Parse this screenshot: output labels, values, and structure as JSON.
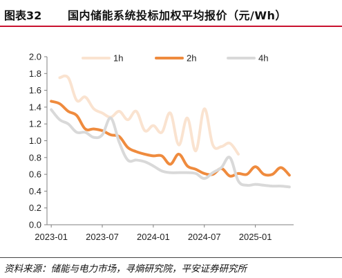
{
  "header": {
    "figure_number": "图表32",
    "title": "国内储能系统投标加权平均报价（元/Wh）"
  },
  "footer": {
    "source": "资料来源：储能与电力市场，寻熵研究院，平安证券研究所"
  },
  "colors": {
    "series_1h": "#fae3d0",
    "series_2h": "#ef8b3e",
    "series_4h": "#d9d9d9",
    "title_rule": "#c8102e"
  },
  "chart_data": {
    "type": "line",
    "title": "国内储能系统投标加权平均报价（元/Wh）",
    "xlabel": "",
    "ylabel": "",
    "ylim": [
      0,
      2.0
    ],
    "yticks": [
      "0.0",
      "0.2",
      "0.4",
      "0.6",
      "0.8",
      "1.0",
      "1.2",
      "1.4",
      "1.6",
      "1.8",
      "2.0"
    ],
    "xticks": [
      "2023-01",
      "2023-07",
      "2024-01",
      "2024-07",
      "2025-01"
    ],
    "xrange": [
      "2023-01",
      "2025-05"
    ],
    "legend_position": "top",
    "grid": false,
    "series": [
      {
        "name": "1h",
        "color": "#fae3d0",
        "points": [
          [
            "2023-02",
            1.75
          ],
          [
            "2023-03",
            1.75
          ],
          [
            "2023-04",
            1.48
          ],
          [
            "2023-05",
            1.52
          ],
          [
            "2023-06",
            1.38
          ],
          [
            "2023-07",
            1.33
          ],
          [
            "2023-08",
            1.28
          ],
          [
            "2023-09",
            1.35
          ],
          [
            "2023-10",
            1.25
          ],
          [
            "2023-11",
            1.35
          ],
          [
            "2023-12",
            1.12
          ],
          [
            "2024-01",
            1.18
          ],
          [
            "2024-02",
            1.1
          ],
          [
            "2024-03",
            1.33
          ],
          [
            "2024-04",
            0.95
          ],
          [
            "2024-05",
            1.27
          ],
          [
            "2024-06",
            0.88
          ],
          [
            "2024-07",
            1.38
          ],
          [
            "2024-08",
            0.95
          ],
          [
            "2024-09",
            0.93
          ],
          [
            "2024-10",
            0.97
          ],
          [
            "2024-11",
            0.84
          ]
        ]
      },
      {
        "name": "2h",
        "color": "#ef8b3e",
        "points": [
          [
            "2023-01",
            1.47
          ],
          [
            "2023-02",
            1.44
          ],
          [
            "2023-03",
            1.35
          ],
          [
            "2023-04",
            1.3
          ],
          [
            "2023-05",
            1.14
          ],
          [
            "2023-06",
            1.14
          ],
          [
            "2023-07",
            1.12
          ],
          [
            "2023-08",
            1.07
          ],
          [
            "2023-09",
            1.05
          ],
          [
            "2023-10",
            0.92
          ],
          [
            "2023-11",
            0.87
          ],
          [
            "2023-12",
            0.84
          ],
          [
            "2024-01",
            0.82
          ],
          [
            "2024-02",
            0.82
          ],
          [
            "2024-03",
            0.72
          ],
          [
            "2024-04",
            0.84
          ],
          [
            "2024-05",
            0.7
          ],
          [
            "2024-06",
            0.66
          ],
          [
            "2024-07",
            0.61
          ],
          [
            "2024-08",
            0.6
          ],
          [
            "2024-09",
            0.67
          ],
          [
            "2024-10",
            0.58
          ],
          [
            "2024-11",
            0.61
          ],
          [
            "2024-12",
            0.6
          ],
          [
            "2025-01",
            0.69
          ],
          [
            "2025-02",
            0.6
          ],
          [
            "2025-03",
            0.6
          ],
          [
            "2025-04",
            0.68
          ],
          [
            "2025-05",
            0.59
          ]
        ]
      },
      {
        "name": "4h",
        "color": "#d9d9d9",
        "points": [
          [
            "2023-01",
            1.37
          ],
          [
            "2023-02",
            1.25
          ],
          [
            "2023-03",
            1.2
          ],
          [
            "2023-04",
            1.1
          ],
          [
            "2023-05",
            1.1
          ],
          [
            "2023-06",
            1.04
          ],
          [
            "2023-07",
            1.07
          ],
          [
            "2023-08",
            1.27
          ],
          [
            "2023-09",
            0.98
          ],
          [
            "2023-10",
            0.77
          ],
          [
            "2023-11",
            0.77
          ],
          [
            "2023-12",
            0.75
          ],
          [
            "2024-01",
            0.7
          ],
          [
            "2024-02",
            0.64
          ],
          [
            "2024-03",
            0.62
          ],
          [
            "2024-04",
            0.62
          ],
          [
            "2024-05",
            0.62
          ],
          [
            "2024-06",
            0.61
          ],
          [
            "2024-07",
            0.55
          ],
          [
            "2024-08",
            0.62
          ],
          [
            "2024-09",
            0.68
          ],
          [
            "2024-10",
            0.8
          ],
          [
            "2024-11",
            0.52
          ],
          [
            "2024-12",
            0.47
          ],
          [
            "2025-01",
            0.48
          ],
          [
            "2025-02",
            0.47
          ],
          [
            "2025-03",
            0.46
          ],
          [
            "2025-04",
            0.46
          ],
          [
            "2025-05",
            0.45
          ]
        ]
      }
    ]
  }
}
